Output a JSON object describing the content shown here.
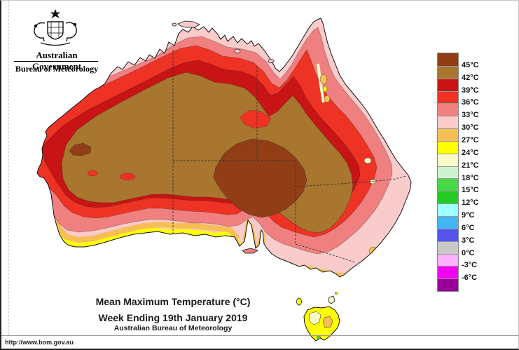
{
  "header": {
    "government": "Australian Government",
    "bureau": "Bureau of Meteorology",
    "logo": "australian-coat-of-arms"
  },
  "titles": {
    "line1": "Mean Maximum Temperature (°C)",
    "line2": "Week Ending 19th January 2019",
    "line3": "Australian Bureau of Meteorology"
  },
  "footer": {
    "url": "http://www.bom.gov.au"
  },
  "legend": {
    "boundary_labels": [
      "45°C",
      "42°C",
      "39°C",
      "36°C",
      "33°C",
      "30°C",
      "27°C",
      "24°C",
      "21°C",
      "18°C",
      "15°C",
      "12°C",
      "9°C",
      "6°C",
      "3°C",
      "0°C",
      "-3°C",
      "-6°C"
    ],
    "swatch_colors_top_to_bottom": [
      "#913E17",
      "#A8762E",
      "#C81414",
      "#EE3224",
      "#F08080",
      "#FACBCB",
      "#F6BF55",
      "#FFFF00",
      "#FAFAC8",
      "#CFF2CF",
      "#46D846",
      "#22CC22",
      "#A0FFFF",
      "#41B6F2",
      "#5555EE",
      "#C8C8C8",
      "#FFAFFF",
      "#F000F0",
      "#990099"
    ]
  },
  "map": {
    "region": "Australia",
    "depicts": "Filled temperature contour bands over Australia and Tasmania with state border lines; interior shows 42-45+ °C, coasts 21-33 °C"
  }
}
